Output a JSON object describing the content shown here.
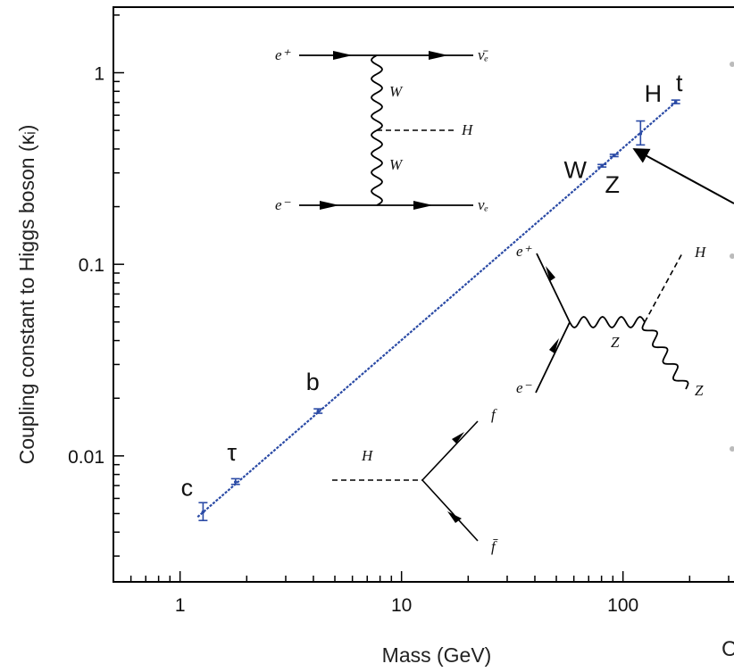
{
  "chart_data": {
    "type": "scatter",
    "title": "",
    "xlabel": "Mass (GeV)",
    "ylabel": "Coupling constant to Higgs boson (κᵢ)",
    "x_scale": "log",
    "y_scale": "log",
    "xlim": [
      0.5,
      400
    ],
    "ylim": [
      0.0022,
      2.2
    ],
    "x_ticks": [
      {
        "value": 1,
        "label": "1"
      },
      {
        "value": 10,
        "label": "10"
      },
      {
        "value": 100,
        "label": "100"
      }
    ],
    "y_ticks": [
      {
        "value": 0.01,
        "label": "0.01"
      },
      {
        "value": 0.1,
        "label": "0.1"
      },
      {
        "value": 1,
        "label": "1"
      }
    ],
    "series": [
      {
        "points": [
          {
            "label": "c",
            "x": 1.27,
            "y": 0.0051,
            "y_low": 0.0046,
            "y_high": 0.0057
          },
          {
            "label": "τ",
            "x": 1.78,
            "y": 0.0073,
            "y_low": 0.0071,
            "y_high": 0.0076
          },
          {
            "label": "b",
            "x": 4.2,
            "y": 0.0171,
            "y_low": 0.0167,
            "y_high": 0.0176
          },
          {
            "label": "W",
            "x": 80.4,
            "y": 0.327,
            "y_low": 0.322,
            "y_high": 0.332
          },
          {
            "label": "Z",
            "x": 91.2,
            "y": 0.37,
            "y_low": 0.365,
            "y_high": 0.375
          },
          {
            "label": "H",
            "x": 120,
            "y": 0.48,
            "y_low": 0.42,
            "y_high": 0.56
          },
          {
            "label": "t",
            "x": 173,
            "y": 0.704,
            "y_low": 0.69,
            "y_high": 0.72
          }
        ]
      }
    ],
    "trend_line": {
      "x": [
        1.2,
        175
      ],
      "y": [
        0.0048,
        0.71
      ]
    },
    "color": "#2a4aa5",
    "grid": false,
    "legend": "none"
  },
  "diagrams": {
    "ww_fusion": {
      "e_plus": "e⁺",
      "nu_bar": "ν̄ₑ",
      "w_upper": "W",
      "higgs": "H",
      "w_lower": "W",
      "e_minus": "e⁻",
      "nu": "νₑ"
    },
    "higgsstrahlung": {
      "e_plus": "e⁺",
      "e_minus": "e⁻",
      "z_internal": "Z",
      "higgs": "H",
      "z_out": "Z"
    },
    "higgs_decay": {
      "higgs": "H",
      "f": "f",
      "f_bar": "f̄"
    }
  },
  "edge_fragment": "C"
}
